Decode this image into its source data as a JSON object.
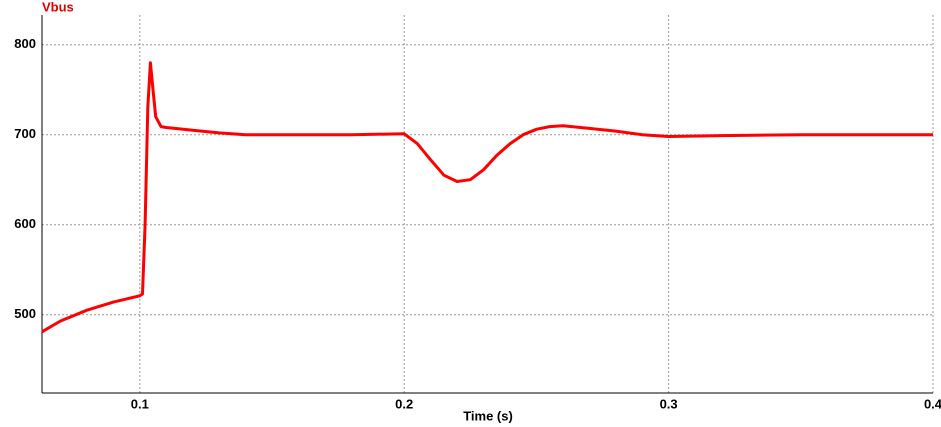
{
  "chart_data": {
    "type": "line",
    "title": "Vbus",
    "xlabel": "Time (s)",
    "x": [
      0.063,
      0.07,
      0.08,
      0.09,
      0.1,
      0.101,
      0.102,
      0.103,
      0.104,
      0.105,
      0.106,
      0.108,
      0.11,
      0.12,
      0.13,
      0.14,
      0.16,
      0.18,
      0.2,
      0.205,
      0.21,
      0.215,
      0.22,
      0.225,
      0.23,
      0.235,
      0.24,
      0.245,
      0.25,
      0.255,
      0.26,
      0.27,
      0.28,
      0.29,
      0.3,
      0.32,
      0.35,
      0.38,
      0.4
    ],
    "series": [
      {
        "name": "Vbus",
        "color": "#ff0000",
        "values": [
          481,
          493,
          505,
          514,
          521,
          523,
          600,
          730,
          780,
          750,
          720,
          709,
          708,
          705,
          702,
          700,
          700,
          700,
          701,
          690,
          672,
          655,
          648,
          650,
          661,
          677,
          690,
          700,
          706,
          709,
          710,
          707,
          704,
          700,
          698,
          699,
          700,
          700,
          700
        ]
      }
    ],
    "xlim": [
      0.063,
      0.4
    ],
    "xticks": [
      0.1,
      0.2,
      0.3,
      0.4
    ],
    "ylim": [
      413,
      833
    ],
    "yticks": [
      500,
      600,
      700,
      800
    ],
    "grid": true
  }
}
